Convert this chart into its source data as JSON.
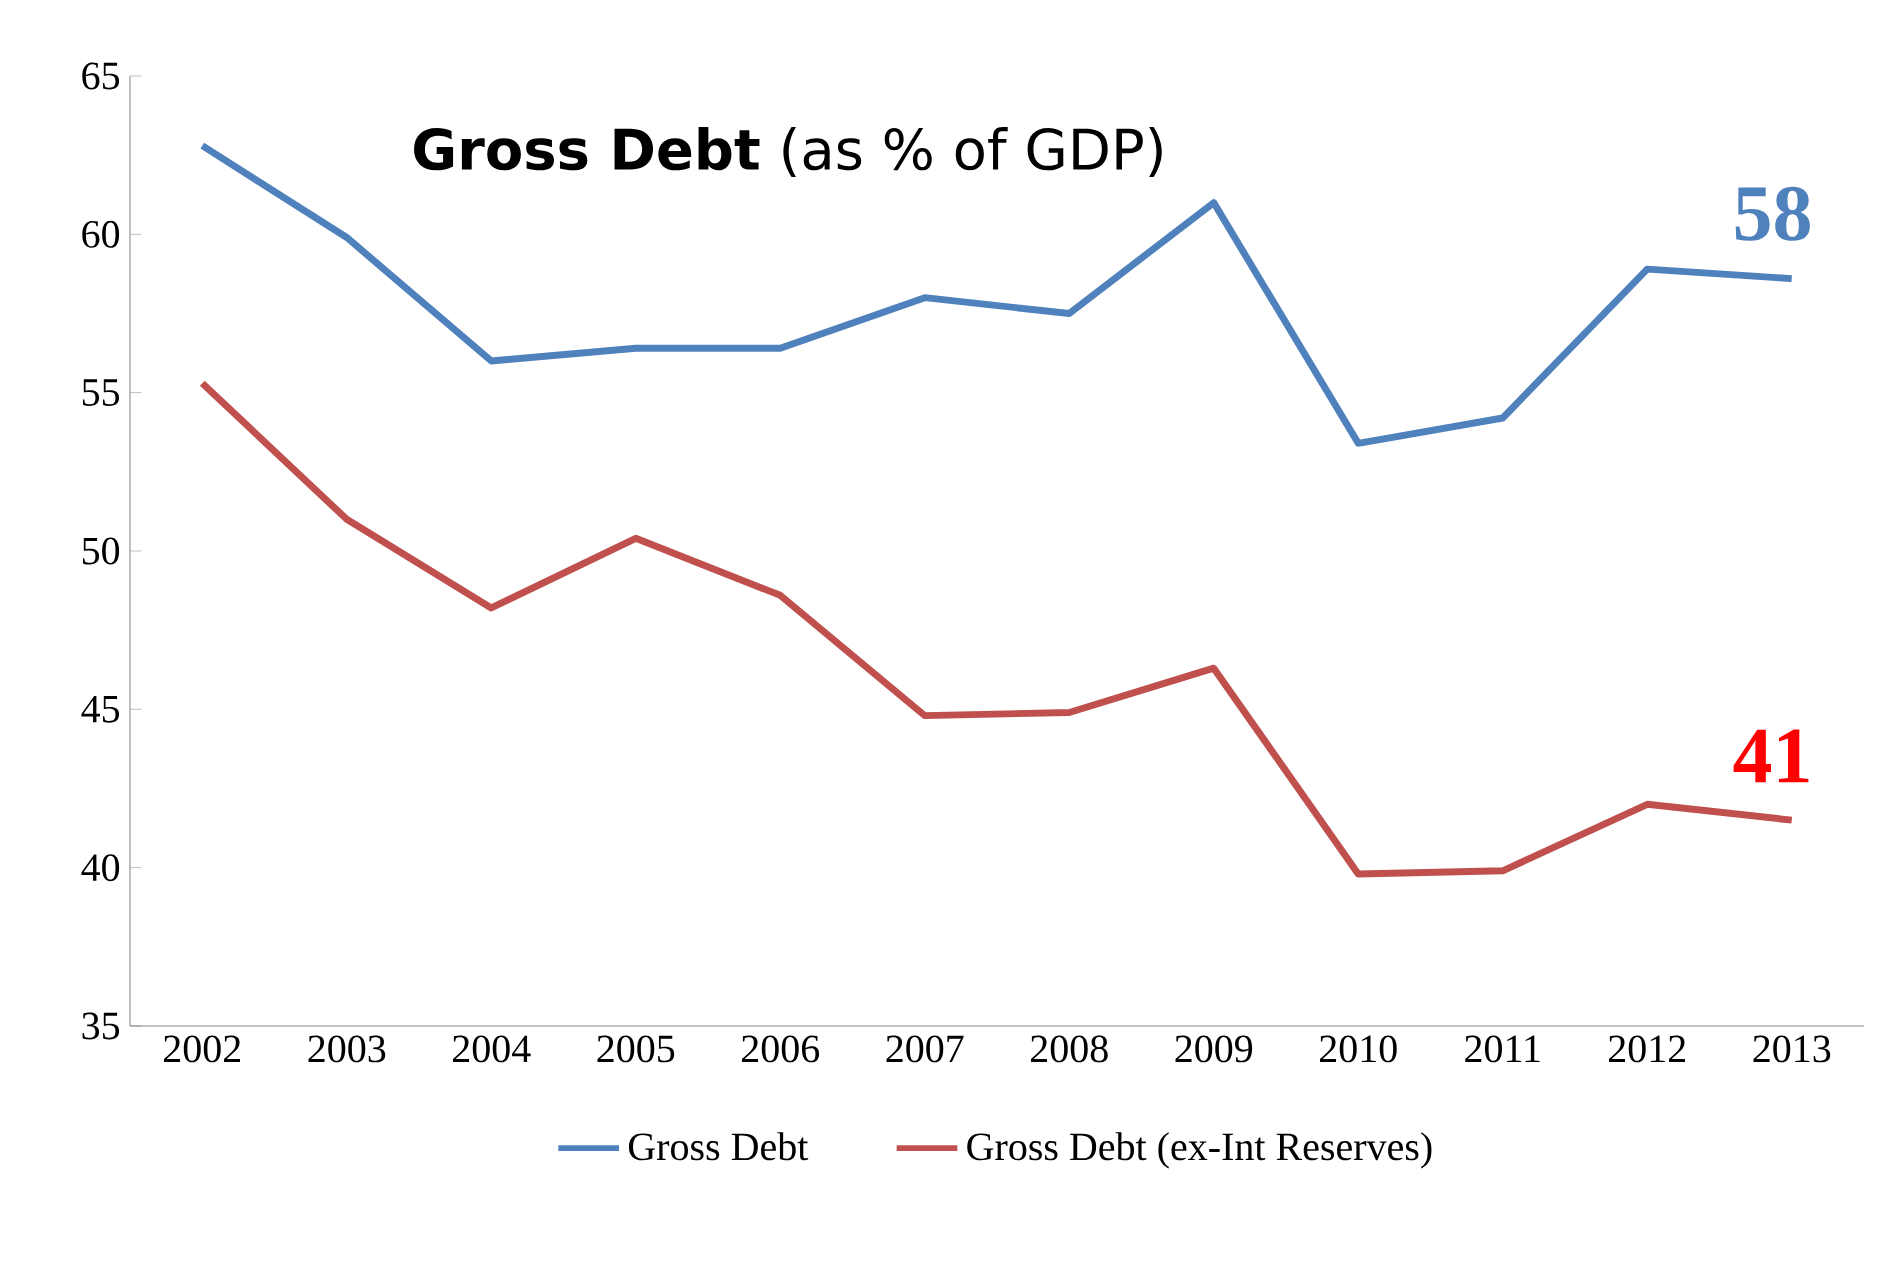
{
  "chart_data": {
    "type": "line",
    "title": "**Gross Debt** (as % of GDP)",
    "categories": [
      "2002",
      "2003",
      "2004",
      "2005",
      "2006",
      "2007",
      "2008",
      "2009",
      "2010",
      "2011",
      "2012",
      "2013"
    ],
    "series": [
      {
        "name": "Gross Debt",
        "color": "#4f81bd",
        "values": [
          62.8,
          59.9,
          56.0,
          56.4,
          56.4,
          58.0,
          57.5,
          61.0,
          53.4,
          54.2,
          58.9,
          58.6
        ]
      },
      {
        "name": "Gross Debt (ex-Int Reserves)",
        "color": "#c0504d",
        "values": [
          55.3,
          51.0,
          48.2,
          50.4,
          48.6,
          44.8,
          44.9,
          46.3,
          39.8,
          39.9,
          42.0,
          41.5
        ]
      }
    ],
    "annotations": [
      {
        "text": "58",
        "x": "2013",
        "y": 58.6
      },
      {
        "text": "41",
        "x": "2013",
        "y": 41.5
      }
    ],
    "ylim": [
      35,
      65
    ],
    "yticks": [
      35,
      40,
      45,
      50,
      55,
      60,
      65
    ],
    "grid": false,
    "legend": "bottom",
    "marker": "none",
    "line_style": "solid"
  }
}
